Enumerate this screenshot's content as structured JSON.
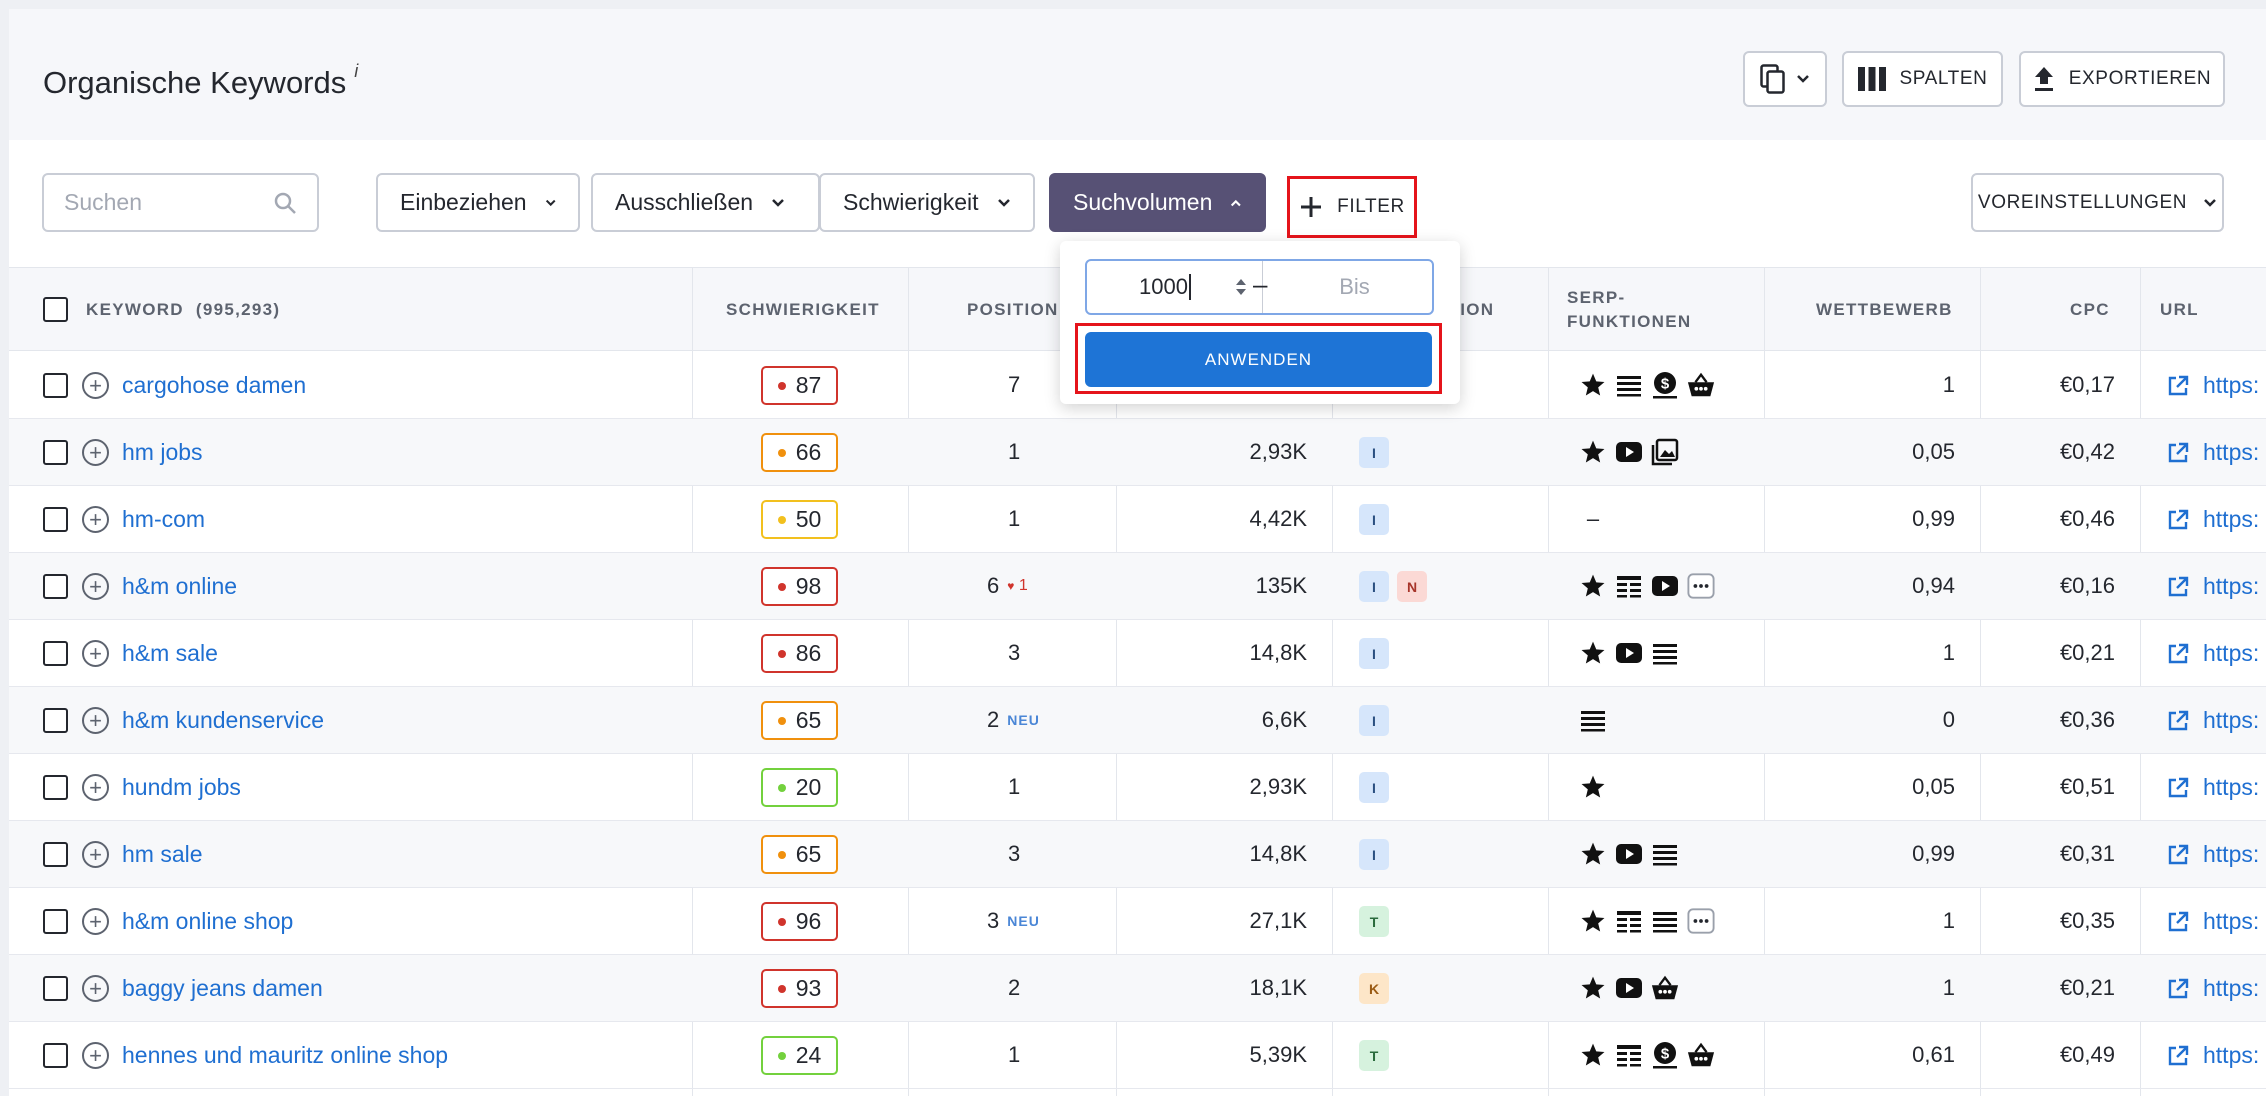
{
  "header": {
    "title": "Organische Keywords",
    "info": "i",
    "columns_label": "SPALTEN",
    "export_label": "EXPORTIEREN"
  },
  "filters": {
    "search_placeholder": "Suchen",
    "include": "Einbeziehen",
    "exclude": "Ausschließen",
    "difficulty": "Schwierigkeit",
    "volume": "Suchvolumen",
    "add_filter": "FILTER",
    "presets": "VOREINSTELLUNGEN"
  },
  "volume_popup": {
    "from_value": "1000",
    "to_placeholder": "Bis",
    "apply_label": "ANWENDEN"
  },
  "table": {
    "columns": {
      "keyword": "KEYWORD",
      "keyword_count": "(995,293)",
      "difficulty": "SCHWIERIGKEIT",
      "position": "POSITION",
      "intent": "NSION",
      "serp_1": "SERP-",
      "serp_2": "FUNKTIONEN",
      "competition": "WETTBEWERB",
      "cpc": "CPC",
      "url": "URL"
    },
    "rows": [
      {
        "keyword": "cargohose damen",
        "kd": "87",
        "pos": "7",
        "pos_note": "",
        "volume": "",
        "intents": [],
        "serp": [
          "star",
          "list",
          "dollar",
          "basket"
        ],
        "competition": "1",
        "cpc": "€0,17",
        "url": "https:"
      },
      {
        "keyword": "hm jobs",
        "kd": "66",
        "pos": "1",
        "pos_note": "",
        "volume": "2,93K",
        "intents": [
          "I"
        ],
        "serp": [
          "star",
          "video",
          "image"
        ],
        "competition": "0,05",
        "cpc": "€0,42",
        "url": "https:"
      },
      {
        "keyword": "hm-com",
        "kd": "50",
        "pos": "1",
        "pos_note": "",
        "volume": "4,42K",
        "intents": [
          "I"
        ],
        "serp": [
          "dash"
        ],
        "competition": "0,99",
        "cpc": "€0,46",
        "url": "https:"
      },
      {
        "keyword": "h&m online",
        "kd": "98",
        "pos": "6",
        "pos_note": "1",
        "volume": "135K",
        "intents": [
          "I",
          "N"
        ],
        "serp": [
          "star",
          "table",
          "video",
          "more"
        ],
        "competition": "0,94",
        "cpc": "€0,16",
        "url": "https:"
      },
      {
        "keyword": "h&m sale",
        "kd": "86",
        "pos": "3",
        "pos_note": "",
        "volume": "14,8K",
        "intents": [
          "I"
        ],
        "serp": [
          "star",
          "video",
          "list"
        ],
        "competition": "1",
        "cpc": "€0,21",
        "url": "https:"
      },
      {
        "keyword": "h&m kundenservice",
        "kd": "65",
        "pos": "2",
        "pos_note": "NEU",
        "volume": "6,6K",
        "intents": [
          "I"
        ],
        "serp": [
          "list"
        ],
        "competition": "0",
        "cpc": "€0,36",
        "url": "https:"
      },
      {
        "keyword": "hundm jobs",
        "kd": "20",
        "pos": "1",
        "pos_note": "",
        "volume": "2,93K",
        "intents": [
          "I"
        ],
        "serp": [
          "star"
        ],
        "competition": "0,05",
        "cpc": "€0,51",
        "url": "https:"
      },
      {
        "keyword": "hm sale",
        "kd": "65",
        "pos": "3",
        "pos_note": "",
        "volume": "14,8K",
        "intents": [
          "I"
        ],
        "serp": [
          "star",
          "video",
          "list"
        ],
        "competition": "0,99",
        "cpc": "€0,31",
        "url": "https:"
      },
      {
        "keyword": "h&m online shop",
        "kd": "96",
        "pos": "3",
        "pos_note": "NEU",
        "volume": "27,1K",
        "intents": [
          "T"
        ],
        "serp": [
          "star",
          "table",
          "list",
          "more"
        ],
        "competition": "1",
        "cpc": "€0,35",
        "url": "https:"
      },
      {
        "keyword": "baggy jeans damen",
        "kd": "93",
        "pos": "2",
        "pos_note": "",
        "volume": "18,1K",
        "intents": [
          "K"
        ],
        "serp": [
          "star",
          "video",
          "basket"
        ],
        "competition": "1",
        "cpc": "€0,21",
        "url": "https:"
      },
      {
        "keyword": "hennes und mauritz online shop",
        "kd": "24",
        "pos": "1",
        "pos_note": "",
        "volume": "5,39K",
        "intents": [
          "T"
        ],
        "serp": [
          "star",
          "table",
          "dollar",
          "basket"
        ],
        "competition": "0,61",
        "cpc": "€0,49",
        "url": "https:"
      }
    ]
  },
  "colors": {
    "accent": "#1e74d6",
    "active_filter": "#575175",
    "highlight": "#e5141b",
    "link": "#1f6fd1",
    "kd_very_hard": "#d0342c",
    "kd_hard": "#f0900d",
    "kd_medium": "#f2c01e",
    "kd_easy": "#73d13d"
  }
}
